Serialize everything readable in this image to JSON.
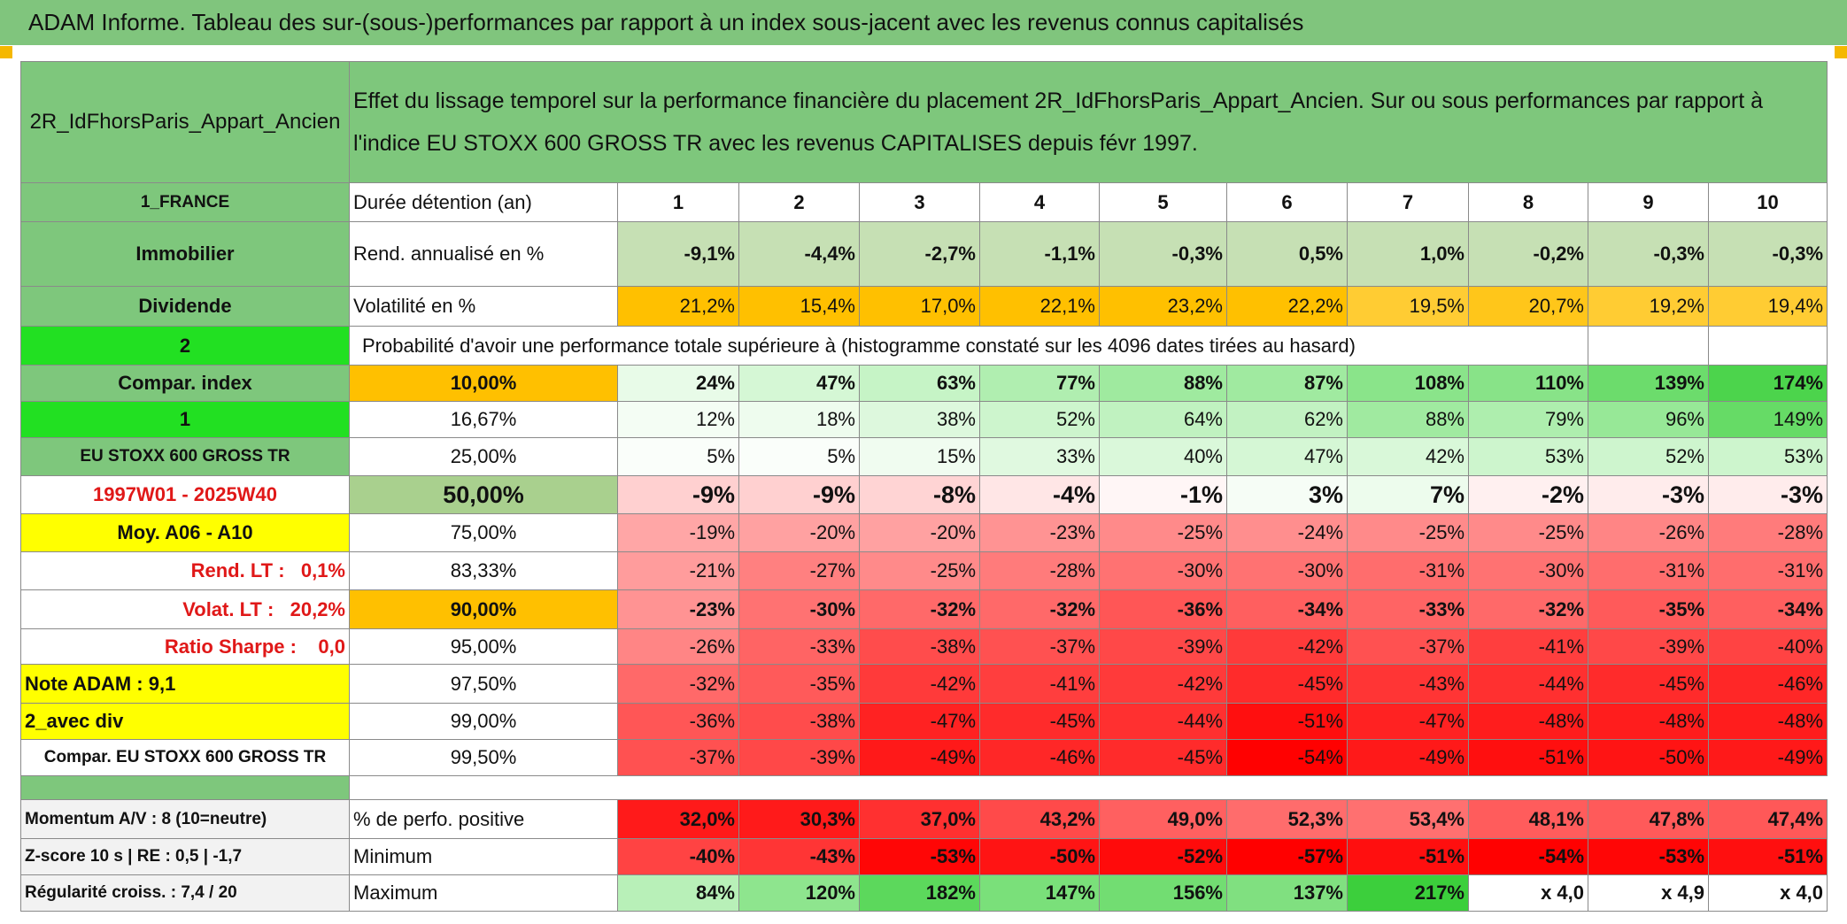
{
  "title": "ADAM Informe. Tableau des sur-(sous-)performances par rapport à un index sous-jacent avec les revenus connus capitalisés",
  "header": {
    "name": "2R_IdFhorsParis_Appart_Ancien",
    "description": "Effet du lissage temporel sur la performance financière du placement 2R_IdFhorsParis_Appart_Ancien. Sur ou sous performances par rapport à l'indice EU STOXX 600 GROSS TR avec les revenus CAPITALISES depuis févr 1997."
  },
  "columns": {
    "label": "1_FRANCE",
    "metric": "Durée détention (an)",
    "periods": [
      1,
      2,
      3,
      4,
      5,
      6,
      7,
      8,
      9,
      10
    ]
  },
  "info_rows": [
    {
      "label": "Immobilier",
      "metric": "Rend. annualisé en %",
      "cells": [
        "-9,1%",
        "-4,4%",
        "-2,7%",
        "-1,1%",
        "-0,3%",
        "0,5%",
        "1,0%",
        "-0,2%",
        "-0,3%",
        "-0,3%"
      ],
      "colors": [
        "#c6e0b4",
        "#c6e0b4",
        "#c6e0b4",
        "#c6e0b4",
        "#c6e0b4",
        "#c6e0b4",
        "#c6e0b4",
        "#c6e0b4",
        "#c6e0b4",
        "#c6e0b4"
      ]
    },
    {
      "label": "Dividende",
      "metric": "Volatilité en %",
      "cells": [
        "21,2%",
        "15,4%",
        "17,0%",
        "22,1%",
        "23,2%",
        "22,2%",
        "19,5%",
        "20,7%",
        "19,2%",
        "19,4%"
      ],
      "colors": [
        "#ffc000",
        "#ffc000",
        "#ffc000",
        "#ffc000",
        "#ffc000",
        "#ffc000",
        "#ffcc33",
        "#ffc61a",
        "#ffcc33",
        "#ffcc33"
      ]
    }
  ],
  "probability": {
    "label": "2",
    "text": "Probabilité d'avoir une performance totale supérieure à (histogramme constaté sur les 4096 dates tirées au hasard)"
  },
  "percentile_rows": [
    {
      "label": "Compar. index",
      "percentile": "10,00%",
      "cells": [
        "24%",
        "47%",
        "63%",
        "77%",
        "88%",
        "87%",
        "108%",
        "110%",
        "139%",
        "174%"
      ],
      "colors": [
        "#e8fbe8",
        "#d5f7d5",
        "#c6f4c6",
        "#b0eeb0",
        "#9fea9f",
        "#a0eaa0",
        "#8ae48a",
        "#88e388",
        "#6cdc6c",
        "#4cd44c"
      ]
    },
    {
      "label": "1",
      "percentile": "16,67%",
      "cells": [
        "12%",
        "18%",
        "38%",
        "52%",
        "64%",
        "62%",
        "88%",
        "79%",
        "96%",
        "149%"
      ],
      "colors": [
        "#f4fdf4",
        "#eefcee",
        "#ddf8dd",
        "#cdf5cd",
        "#c0f2c0",
        "#c2f2c2",
        "#a0eaa0",
        "#aeeeae",
        "#97e897",
        "#66db66"
      ]
    },
    {
      "label": "EU STOXX 600 GROSS TR",
      "percentile": "25,00%",
      "cells": [
        "5%",
        "5%",
        "15%",
        "33%",
        "40%",
        "47%",
        "42%",
        "53%",
        "52%",
        "53%"
      ],
      "colors": [
        "#fafefa",
        "#fafefa",
        "#f0fcf0",
        "#e0f9e0",
        "#daf8da",
        "#d5f7d5",
        "#d9f8d9",
        "#cdf5cd",
        "#cef5ce",
        "#cdf5cd"
      ]
    },
    {
      "label": "1997W01 - 2025W40",
      "percentile": "50,00%",
      "cells": [
        "-9%",
        "-9%",
        "-8%",
        "-4%",
        "-1%",
        "3%",
        "7%",
        "-2%",
        "-3%",
        "-3%"
      ],
      "colors": [
        "#ffd0d0",
        "#ffd0d0",
        "#ffd4d4",
        "#ffe6e6",
        "#fff6f6",
        "#f6fdf6",
        "#edfced",
        "#fff0f0",
        "#ffecec",
        "#ffecec"
      ]
    },
    {
      "label": "Moy. A06 - A10",
      "percentile": "75,00%",
      "cells": [
        "-19%",
        "-20%",
        "-20%",
        "-23%",
        "-25%",
        "-24%",
        "-25%",
        "-25%",
        "-26%",
        "-28%"
      ],
      "colors": [
        "#ffa6a6",
        "#ffa1a1",
        "#ffa1a1",
        "#ff9393",
        "#ff8a8a",
        "#ff8e8e",
        "#ff8a8a",
        "#ff8a8a",
        "#ff8585",
        "#ff7b7b"
      ]
    },
    {
      "label": "Rend. LT :   0,1%",
      "percentile": "83,33%",
      "cells": [
        "-21%",
        "-27%",
        "-25%",
        "-28%",
        "-30%",
        "-30%",
        "-31%",
        "-30%",
        "-31%",
        "-31%"
      ],
      "colors": [
        "#ff9c9c",
        "#ff8080",
        "#ff8a8a",
        "#ff7b7b",
        "#ff7272",
        "#ff7272",
        "#ff6d6d",
        "#ff7272",
        "#ff6d6d",
        "#ff6d6d"
      ]
    },
    {
      "label": "Volat. LT :   20,2%",
      "percentile": "90,00%",
      "cells": [
        "-23%",
        "-30%",
        "-32%",
        "-32%",
        "-36%",
        "-34%",
        "-33%",
        "-32%",
        "-35%",
        "-34%"
      ],
      "colors": [
        "#ff9393",
        "#ff7272",
        "#ff6969",
        "#ff6969",
        "#ff5656",
        "#ff5f5f",
        "#ff6464",
        "#ff6969",
        "#ff5a5a",
        "#ff5f5f"
      ]
    },
    {
      "label": "Ratio Sharpe :    0,0",
      "percentile": "95,00%",
      "cells": [
        "-26%",
        "-33%",
        "-38%",
        "-37%",
        "-39%",
        "-42%",
        "-37%",
        "-41%",
        "-39%",
        "-40%"
      ],
      "colors": [
        "#ff8585",
        "#ff6464",
        "#ff4c4c",
        "#ff5151",
        "#ff4848",
        "#ff3a3a",
        "#ff5151",
        "#ff3e3e",
        "#ff4848",
        "#ff4343"
      ]
    },
    {
      "label": "Note ADAM : 9,1",
      "percentile": "97,50%",
      "cells": [
        "-32%",
        "-35%",
        "-42%",
        "-41%",
        "-42%",
        "-45%",
        "-43%",
        "-44%",
        "-45%",
        "-46%"
      ],
      "colors": [
        "#ff6969",
        "#ff5a5a",
        "#ff3a3a",
        "#ff3e3e",
        "#ff3a3a",
        "#ff2b2b",
        "#ff3535",
        "#ff3030",
        "#ff2b2b",
        "#ff2727"
      ]
    },
    {
      "label": "2_avec div",
      "percentile": "99,00%",
      "cells": [
        "-36%",
        "-38%",
        "-47%",
        "-45%",
        "-44%",
        "-51%",
        "-47%",
        "-48%",
        "-48%",
        "-48%"
      ],
      "colors": [
        "#ff5656",
        "#ff4c4c",
        "#ff2222",
        "#ff2b2b",
        "#ff3030",
        "#ff0f0f",
        "#ff2222",
        "#ff1d1d",
        "#ff1d1d",
        "#ff1d1d"
      ]
    },
    {
      "label": "Compar. EU STOXX 600 GROSS TR",
      "percentile": "99,50%",
      "cells": [
        "-37%",
        "-39%",
        "-49%",
        "-46%",
        "-45%",
        "-54%",
        "-49%",
        "-51%",
        "-50%",
        "-49%"
      ],
      "colors": [
        "#ff5151",
        "#ff4848",
        "#ff1919",
        "#ff2727",
        "#ff2b2b",
        "#ff0101",
        "#ff1919",
        "#ff0f0f",
        "#ff1414",
        "#ff1919"
      ]
    }
  ],
  "summary_rows": [
    {
      "label": "Momentum A/V : 8 (10=neutre)",
      "metric": "% de perfo. positive",
      "cells": [
        "32,0%",
        "30,3%",
        "37,0%",
        "43,2%",
        "49,0%",
        "52,3%",
        "53,4%",
        "48,1%",
        "47,8%",
        "47,4%"
      ],
      "colors": [
        "#ff1a1a",
        "#ff1a1a",
        "#ff3030",
        "#ff4a4a",
        "#ff6060",
        "#ff6c6c",
        "#ff7070",
        "#ff5c5c",
        "#ff5a5a",
        "#ff5858"
      ]
    },
    {
      "label": "Z-score 10 s | RE : 0,5 | -1,7",
      "metric": "Minimum",
      "cells": [
        "-40%",
        "-43%",
        "-53%",
        "-50%",
        "-52%",
        "-57%",
        "-51%",
        "-54%",
        "-53%",
        "-51%"
      ],
      "colors": [
        "#ff4343",
        "#ff3535",
        "#ff0606",
        "#ff1414",
        "#ff0b0b",
        "#ff0000",
        "#ff0f0f",
        "#ff0101",
        "#ff0606",
        "#ff0f0f"
      ]
    },
    {
      "label": "Régularité croiss. : 7,4 / 20",
      "metric": "Maximum",
      "cells": [
        "84%",
        "120%",
        "182%",
        "147%",
        "156%",
        "137%",
        "217%",
        "x 4,0",
        "x 4,9",
        "x 4,0"
      ],
      "colors": [
        "#b8f0b8",
        "#8ee58e",
        "#5cd85c",
        "#7ae07a",
        "#72dd72",
        "#80e080",
        "#3ccf3c",
        "#ffffff",
        "#ffffff",
        "#ffffff"
      ]
    }
  ]
}
